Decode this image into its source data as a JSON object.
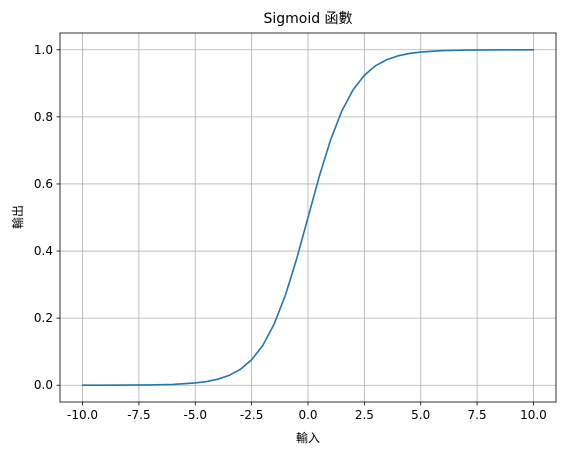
{
  "chart_data": {
    "type": "line",
    "title": "Sigmoid 函數",
    "xlabel": "輸入",
    "ylabel": "輸出",
    "xlim": [
      -11.0,
      11.0
    ],
    "ylim": [
      -0.05,
      1.05
    ],
    "grid": true,
    "xticks": [
      -10.0,
      -7.5,
      -5.0,
      -2.5,
      0.0,
      2.5,
      5.0,
      7.5,
      10.0
    ],
    "xtick_labels": [
      "-10.0",
      "-7.5",
      "-5.0",
      "-2.5",
      "0.0",
      "2.5",
      "5.0",
      "7.5",
      "10.0"
    ],
    "yticks": [
      0.0,
      0.2,
      0.4,
      0.6,
      0.8,
      1.0
    ],
    "ytick_labels": [
      "0.0",
      "0.2",
      "0.4",
      "0.6",
      "0.8",
      "1.0"
    ],
    "series": [
      {
        "color": "#1f77b4",
        "x": [
          -10,
          -9,
          -8,
          -7,
          -6,
          -5,
          -4.5,
          -4,
          -3.5,
          -3,
          -2.5,
          -2,
          -1.5,
          -1,
          -0.5,
          0,
          0.5,
          1,
          1.5,
          2,
          2.5,
          3,
          3.5,
          4,
          4.5,
          5,
          6,
          7,
          8,
          9,
          10
        ],
        "y": [
          5e-05,
          0.00012,
          0.00034,
          0.00091,
          0.00247,
          0.0067,
          0.011,
          0.018,
          0.0293,
          0.0474,
          0.0759,
          0.1192,
          0.1824,
          0.2689,
          0.3775,
          0.5,
          0.6225,
          0.7311,
          0.8176,
          0.8808,
          0.9241,
          0.9526,
          0.9707,
          0.982,
          0.989,
          0.9933,
          0.99753,
          0.99909,
          0.99966,
          0.99988,
          0.99995
        ]
      }
    ]
  }
}
